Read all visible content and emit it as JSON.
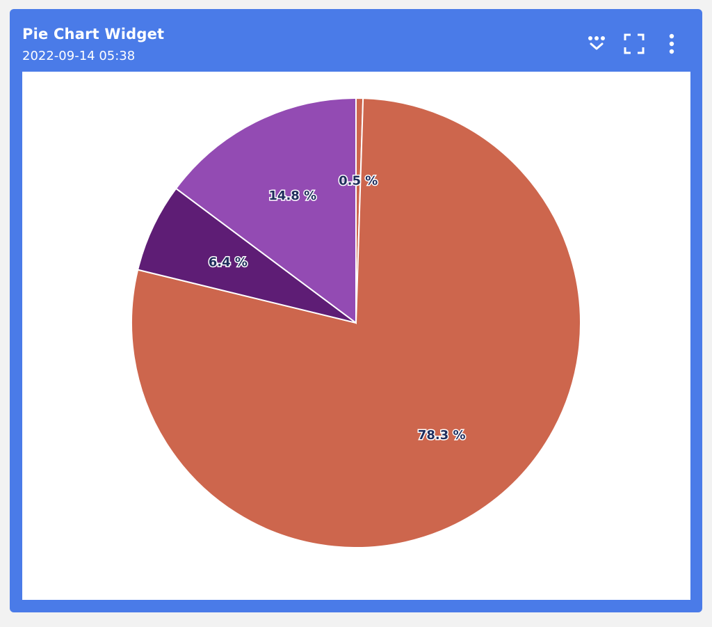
{
  "widget": {
    "title": "Pie Chart Widget",
    "timestamp": "2022-09-14 05:38"
  },
  "toolbar": {
    "icons": [
      "filter-dots-icon",
      "fullscreen-icon",
      "more-vertical-icon"
    ]
  },
  "colors": {
    "header": "#4a7be8",
    "slice_orange": "#cd664d",
    "slice_dark_purple": "#5e1d75",
    "slice_purple": "#934bb3",
    "label_text": "#1f2d5c"
  },
  "chart_data": {
    "type": "pie",
    "title": "",
    "slices": [
      {
        "label": "0.5 %",
        "value": 0.5,
        "color": "#cd664d"
      },
      {
        "label": "78.3 %",
        "value": 78.3,
        "color": "#cd664d"
      },
      {
        "label": "6.4 %",
        "value": 6.4,
        "color": "#5e1d75"
      },
      {
        "label": "14.8 %",
        "value": 14.8,
        "color": "#934bb3"
      }
    ],
    "legend": "none",
    "start_angle": "top",
    "direction": "clockwise"
  }
}
